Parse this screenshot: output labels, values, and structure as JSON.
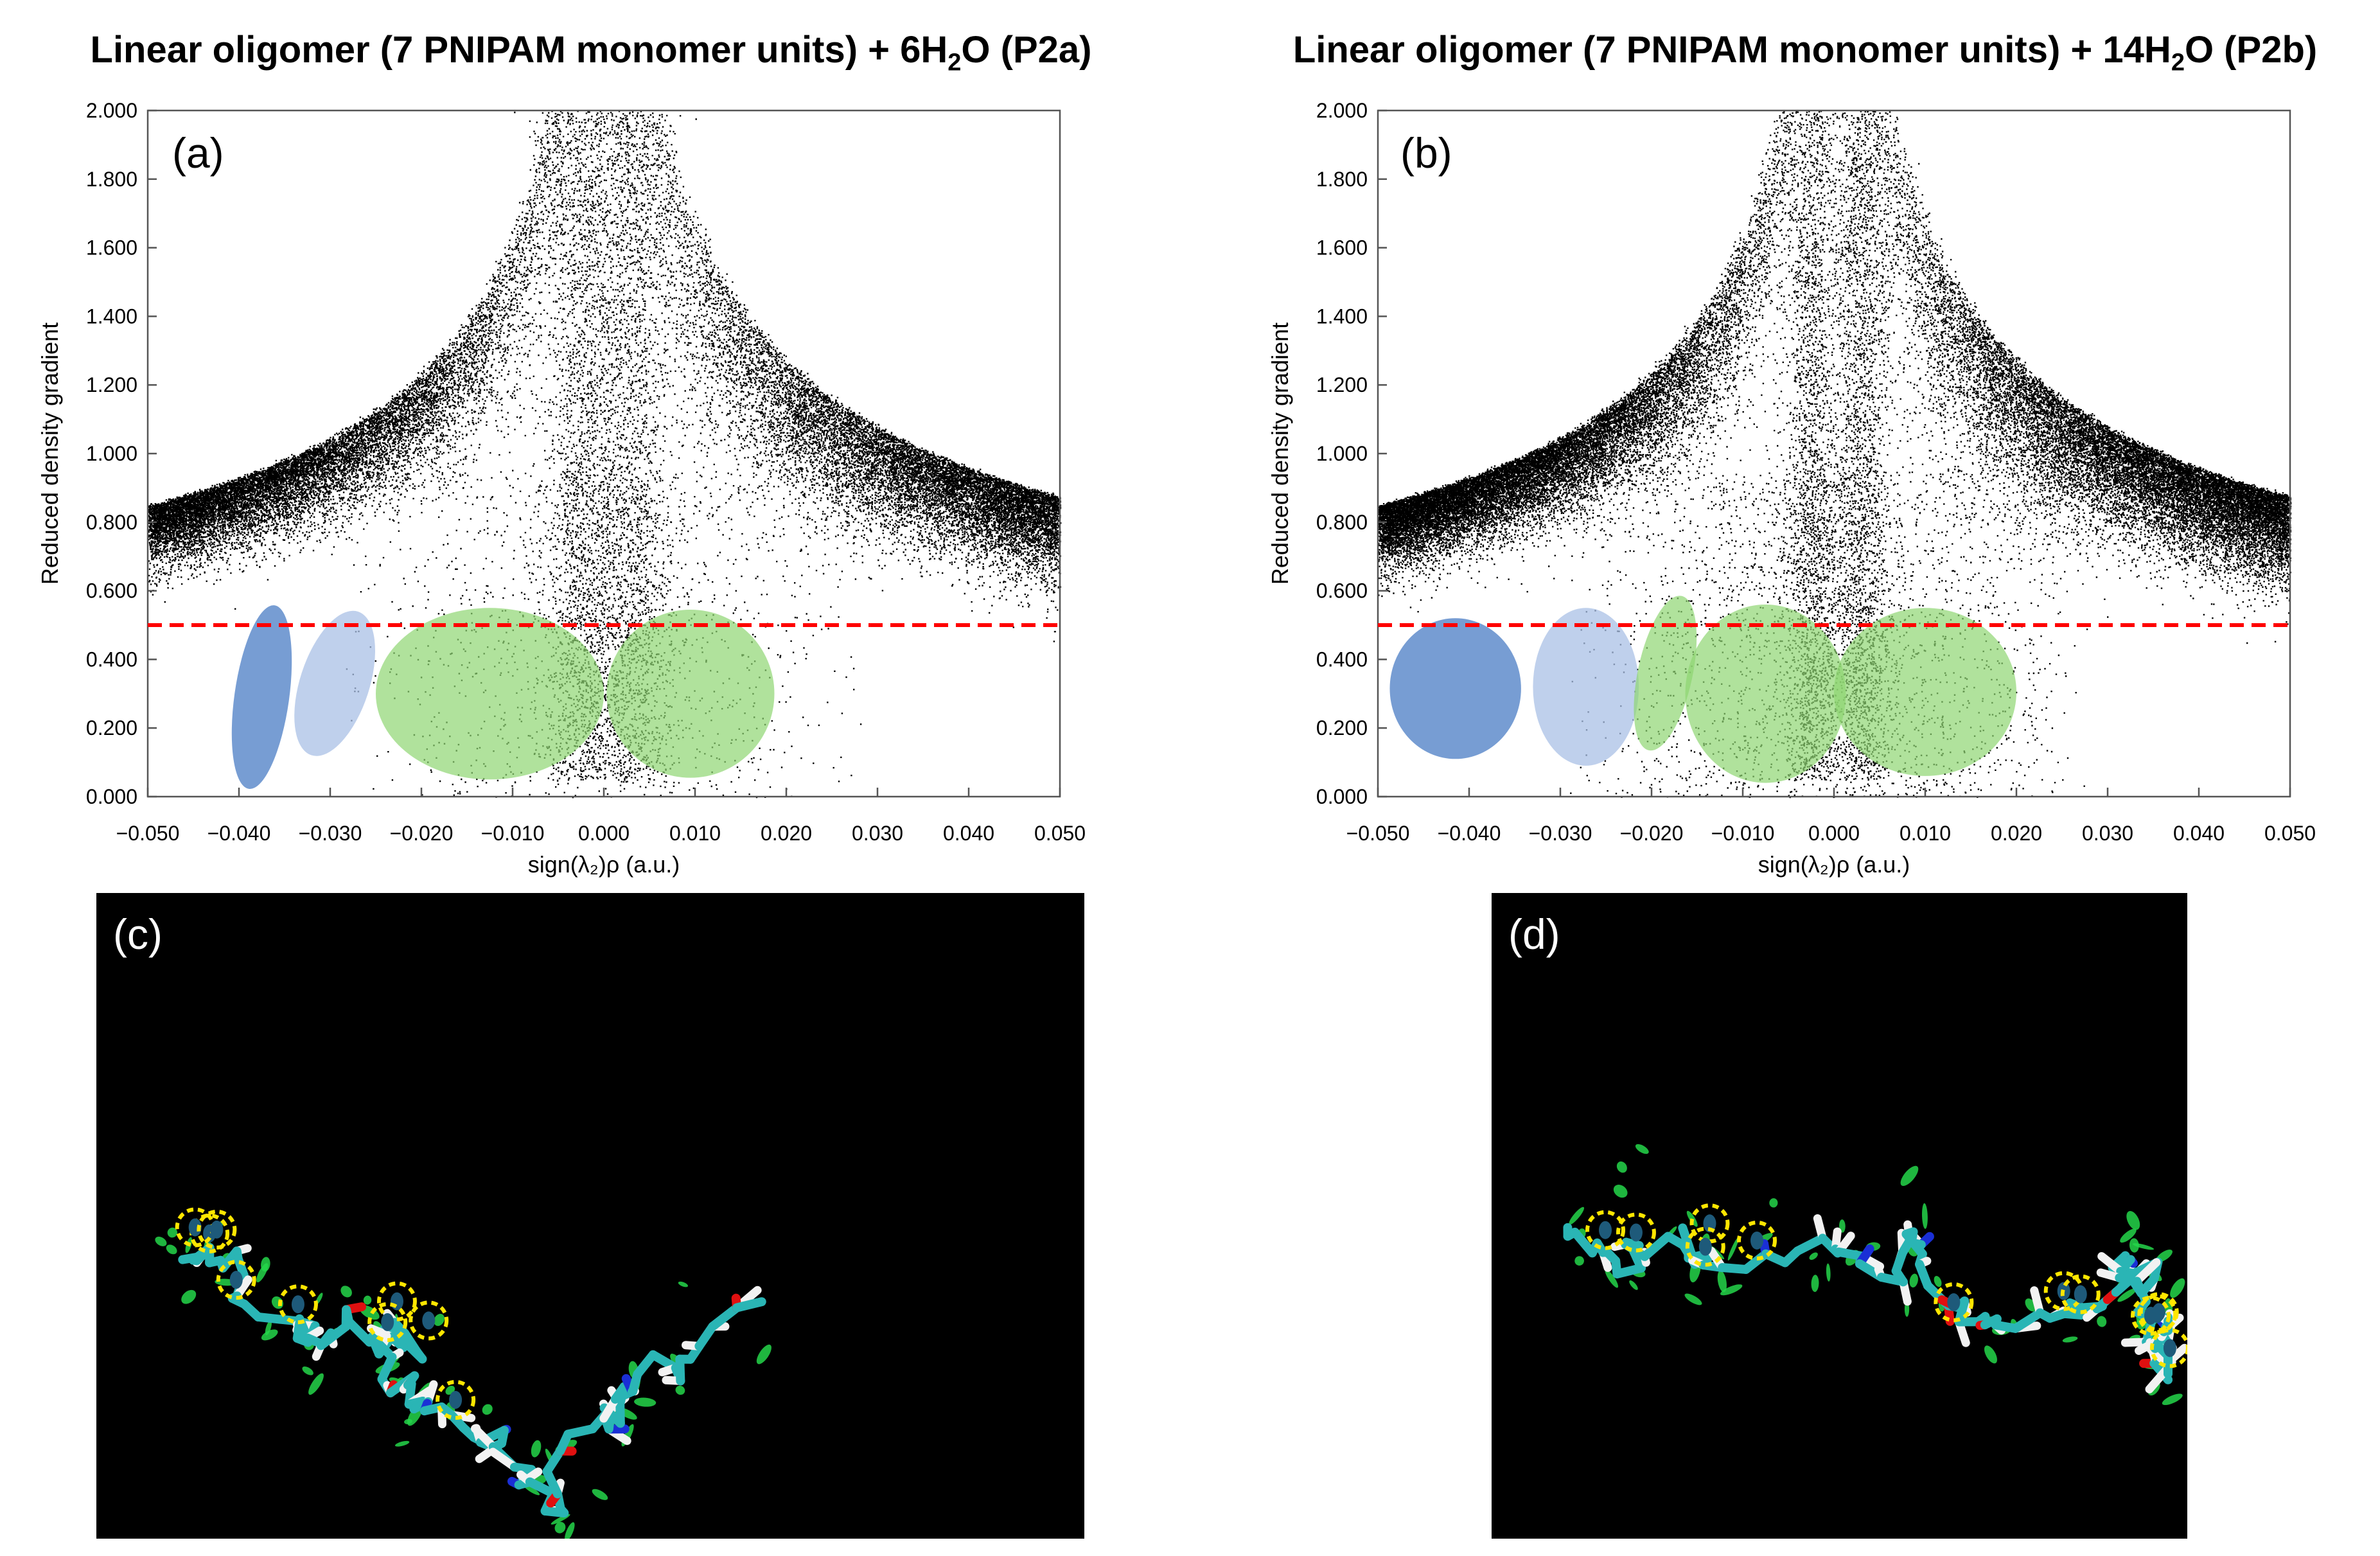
{
  "panels": {
    "a": {
      "title_main": "Linear oligomer (7 PNIPAM monomer units) + 6H",
      "title_sub": "2",
      "title_end": "O (P2a)",
      "letter": "(a)"
    },
    "b": {
      "title_main": "Linear oligomer (7 PNIPAM monomer units) + 14H",
      "title_sub": "2",
      "title_end": "O (P2b)",
      "letter": "(b)"
    },
    "c": {
      "letter": "(c)"
    },
    "d": {
      "letter": "(d)"
    }
  },
  "chart_data": [
    {
      "type": "scatter",
      "panel": "a",
      "xlabel": "sign(λ₂)ρ (a.u.)",
      "ylabel": "Reduced density gradient",
      "xlim": [
        -0.05,
        0.05
      ],
      "ylim": [
        0,
        2
      ],
      "x_ticks": [
        "-0.050",
        "-0.040",
        "-0.030",
        "-0.020",
        "-0.010",
        "0.000",
        "0.010",
        "0.020",
        "0.030",
        "0.040",
        "0.050"
      ],
      "y_ticks": [
        "0.000",
        "0.200",
        "0.400",
        "0.600",
        "0.800",
        "1.000",
        "1.200",
        "1.400",
        "1.600",
        "1.800",
        "2.000"
      ],
      "cutoff_line": {
        "y": 0.5,
        "color": "#ff0000",
        "style": "dashed"
      },
      "regions": [
        {
          "cx": -0.0375,
          "cy": 0.29,
          "rx": 0.003,
          "ry": 0.27,
          "color": "#4a7cc4",
          "opacity": 0.75
        },
        {
          "cx": -0.0295,
          "cy": 0.33,
          "rx": 0.0038,
          "ry": 0.22,
          "color": "#a9c0e6",
          "opacity": 0.75
        },
        {
          "cx": -0.0125,
          "cy": 0.3,
          "rx": 0.0125,
          "ry": 0.25,
          "color": "#8fd672",
          "opacity": 0.7
        },
        {
          "cx": 0.0095,
          "cy": 0.3,
          "rx": 0.0092,
          "ry": 0.245,
          "color": "#8fd672",
          "opacity": 0.7
        }
      ],
      "point_density": "dense black RDG scatter, two symmetric wings converging at 0.000",
      "point_color": "#000000"
    },
    {
      "type": "scatter",
      "panel": "b",
      "xlabel": "sign(λ₂)ρ (a.u.)",
      "ylabel": "Reduced density gradient",
      "xlim": [
        -0.05,
        0.05
      ],
      "ylim": [
        0,
        2
      ],
      "x_ticks": [
        "-0.050",
        "-0.040",
        "-0.030",
        "-0.020",
        "-0.010",
        "0.000",
        "0.010",
        "0.020",
        "0.030",
        "0.040",
        "0.050"
      ],
      "y_ticks": [
        "0.000",
        "0.200",
        "0.400",
        "0.600",
        "0.800",
        "1.000",
        "1.200",
        "1.400",
        "1.600",
        "1.800",
        "2.000"
      ],
      "cutoff_line": {
        "y": 0.5,
        "color": "#ff0000",
        "style": "dashed"
      },
      "regions": [
        {
          "cx": -0.0415,
          "cy": 0.315,
          "rx": 0.0072,
          "ry": 0.205,
          "color": "#4a7cc4",
          "opacity": 0.75
        },
        {
          "cx": -0.0272,
          "cy": 0.32,
          "rx": 0.0058,
          "ry": 0.23,
          "color": "#a9c0e6",
          "opacity": 0.75
        },
        {
          "cx": -0.0185,
          "cy": 0.36,
          "rx": 0.003,
          "ry": 0.23,
          "color": "#8fd672",
          "opacity": 0.7
        },
        {
          "cx": -0.0075,
          "cy": 0.3,
          "rx": 0.0088,
          "ry": 0.26,
          "color": "#8fd672",
          "opacity": 0.7
        },
        {
          "cx": 0.01,
          "cy": 0.305,
          "rx": 0.01,
          "ry": 0.245,
          "color": "#8fd672",
          "opacity": 0.7
        }
      ],
      "point_color": "#000000"
    }
  ],
  "mol_colors": {
    "carbon": "#2ab5b5",
    "hydrogen": "#f2f2f2",
    "nitrogen": "#1a2fd6",
    "oxygen": "#e01010",
    "isosurface": "#24d64a",
    "hbond": "#1e5a7a",
    "highlight": "#ffe600"
  }
}
